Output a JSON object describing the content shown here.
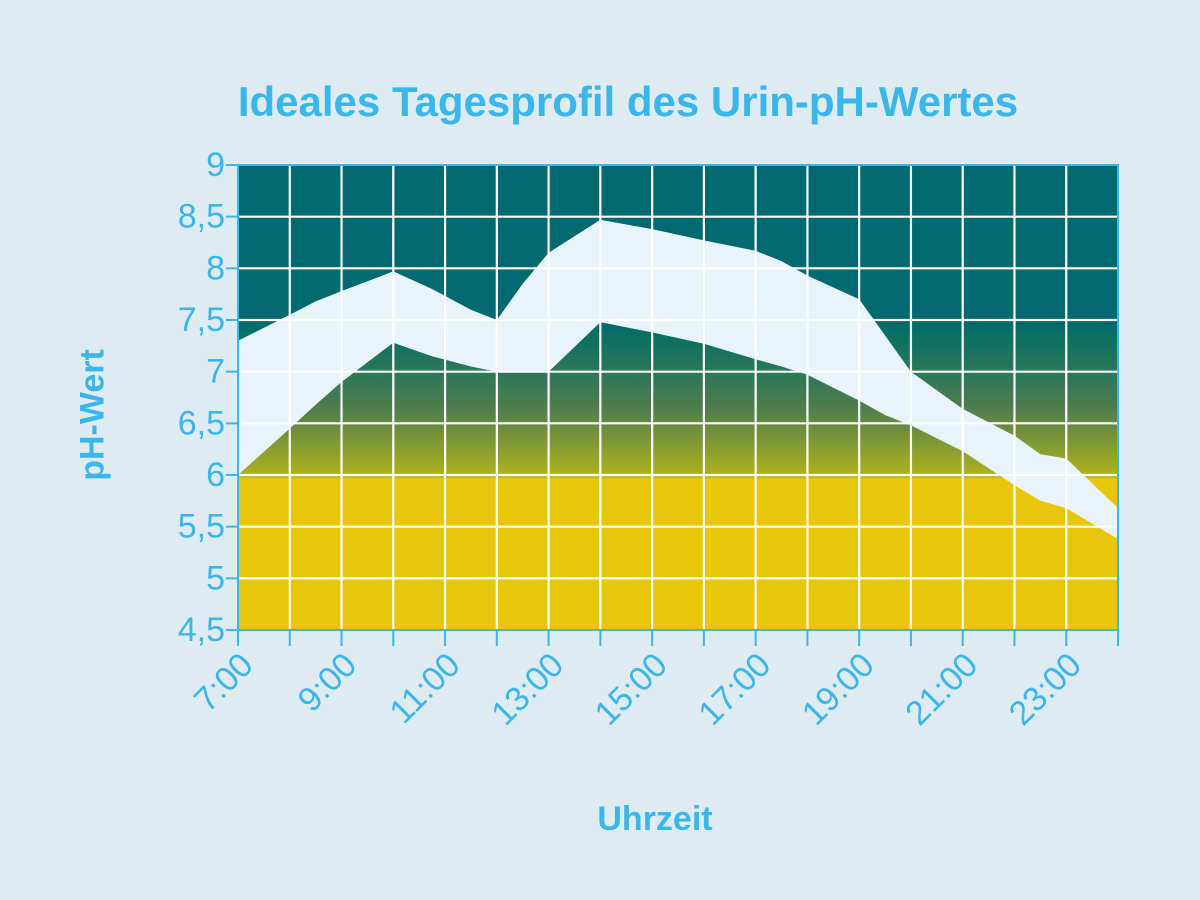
{
  "chart_data": {
    "type": "area",
    "title": "Ideales Tagesprofil des Urin-pH-Wertes",
    "xlabel": "Uhrzeit",
    "ylabel": "pH-Wert",
    "x_ticks": [
      "7:00",
      "9:00",
      "11:00",
      "13:00",
      "15:00",
      "17:00",
      "19:00",
      "21:00",
      "23:00"
    ],
    "y_ticks": [
      "9",
      "8,5",
      "8",
      "7,5",
      "7",
      "6,5",
      "6",
      "5,5",
      "5",
      "4,5"
    ],
    "xlim": [
      7,
      24
    ],
    "ylim": [
      4.5,
      9
    ],
    "grid": true,
    "band": {
      "x": [
        7,
        8,
        8.5,
        9,
        10,
        10.75,
        11.5,
        12,
        12.5,
        13,
        14,
        15,
        16,
        17,
        17.5,
        18,
        19,
        19.5,
        20,
        21,
        22,
        22.5,
        23,
        24
      ],
      "upper": [
        7.3,
        7.55,
        7.68,
        7.78,
        7.97,
        7.8,
        7.6,
        7.5,
        7.85,
        8.15,
        8.47,
        8.38,
        8.27,
        8.17,
        8.07,
        7.93,
        7.7,
        7.35,
        7.0,
        6.64,
        6.38,
        6.2,
        6.16,
        5.68
      ],
      "lower": [
        6.0,
        6.45,
        6.68,
        6.9,
        7.28,
        7.15,
        7.05,
        7.0,
        7.0,
        7.0,
        7.48,
        7.38,
        7.27,
        7.12,
        7.05,
        6.97,
        6.72,
        6.58,
        6.48,
        6.23,
        5.9,
        5.75,
        5.68,
        5.38
      ]
    },
    "colors": {
      "background": "#deebf1",
      "alkaline": "#006a70",
      "neutral": "#4e7c4e",
      "acidic": "#e8c60a",
      "band": "#e8f4fa",
      "axis": "#3bb6ea",
      "grid": "#ffffff"
    }
  }
}
